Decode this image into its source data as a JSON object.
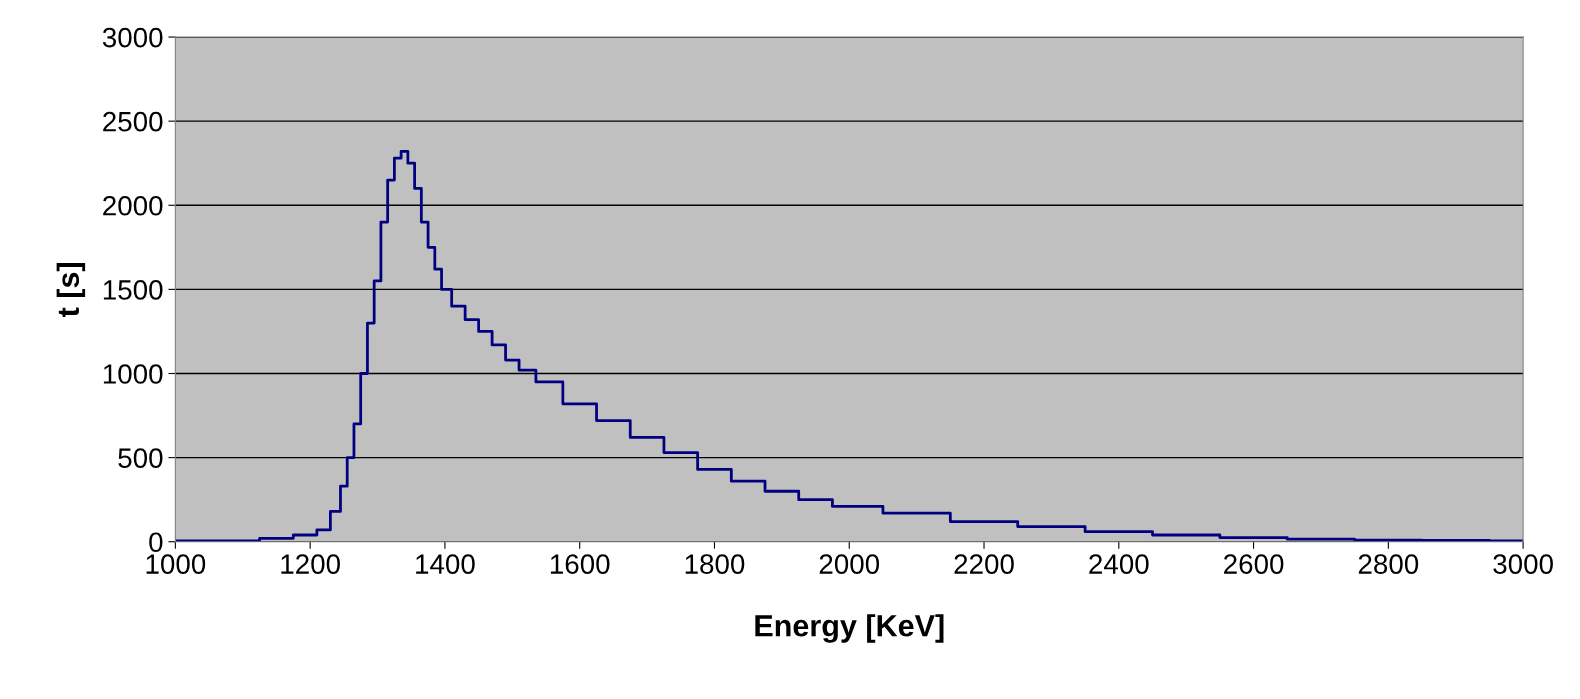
{
  "chart_data": {
    "type": "step",
    "xlabel": "Energy [KeV]",
    "ylabel": "t [s]",
    "x": [
      1000,
      1050,
      1100,
      1150,
      1200,
      1220,
      1240,
      1250,
      1260,
      1270,
      1280,
      1290,
      1300,
      1310,
      1320,
      1330,
      1340,
      1350,
      1360,
      1370,
      1380,
      1390,
      1400,
      1420,
      1440,
      1460,
      1480,
      1500,
      1520,
      1550,
      1600,
      1650,
      1700,
      1750,
      1800,
      1850,
      1900,
      1950,
      2000,
      2100,
      2200,
      2300,
      2400,
      2500,
      2600,
      2700,
      2800,
      2900,
      3000
    ],
    "series": [
      {
        "color": "#000080",
        "values": [
          5,
          5,
          5,
          20,
          40,
          70,
          180,
          330,
          500,
          700,
          1000,
          1300,
          1550,
          1900,
          2150,
          2280,
          2320,
          2250,
          2100,
          1900,
          1750,
          1620,
          1500,
          1400,
          1320,
          1250,
          1170,
          1080,
          1020,
          950,
          820,
          720,
          620,
          530,
          430,
          360,
          300,
          250,
          210,
          170,
          120,
          90,
          60,
          40,
          25,
          15,
          10,
          8,
          5
        ]
      }
    ],
    "xlim": [
      1000,
      3000
    ],
    "xticks": [
      1000,
      1200,
      1400,
      1600,
      1800,
      2000,
      2200,
      2400,
      2600,
      2800,
      3000
    ],
    "ylim": [
      0,
      3000
    ],
    "yticks": [
      0,
      500,
      1000,
      1500,
      2000,
      2500,
      3000
    ],
    "grid": "y",
    "legend": false
  }
}
